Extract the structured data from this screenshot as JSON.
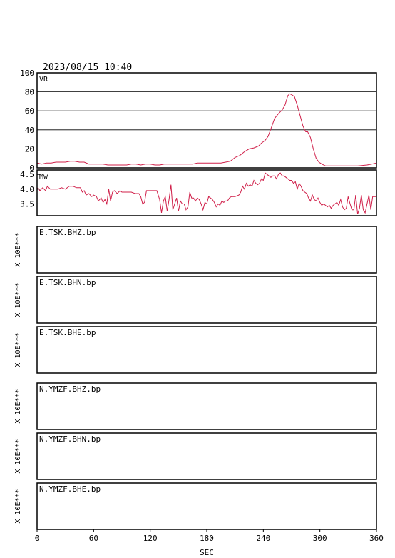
{
  "header": {
    "datetime": "2023/08/15  10:40"
  },
  "chart_data": [
    {
      "type": "line",
      "label": "VR",
      "ylim": [
        0,
        100
      ],
      "yticks": [
        0,
        20,
        40,
        60,
        80,
        100
      ],
      "grid": true,
      "color": "#d0204a",
      "points": [
        [
          0,
          5
        ],
        [
          5,
          4
        ],
        [
          10,
          5
        ],
        [
          15,
          5
        ],
        [
          20,
          6
        ],
        [
          25,
          6
        ],
        [
          30,
          6
        ],
        [
          35,
          7
        ],
        [
          40,
          7
        ],
        [
          45,
          6
        ],
        [
          50,
          6
        ],
        [
          55,
          4
        ],
        [
          60,
          4
        ],
        [
          65,
          4
        ],
        [
          70,
          4
        ],
        [
          75,
          3
        ],
        [
          80,
          3
        ],
        [
          85,
          3
        ],
        [
          90,
          3
        ],
        [
          95,
          3
        ],
        [
          100,
          4
        ],
        [
          105,
          4
        ],
        [
          110,
          3
        ],
        [
          115,
          4
        ],
        [
          120,
          4
        ],
        [
          125,
          3
        ],
        [
          130,
          3
        ],
        [
          135,
          4
        ],
        [
          140,
          4
        ],
        [
          145,
          4
        ],
        [
          150,
          4
        ],
        [
          155,
          4
        ],
        [
          160,
          4
        ],
        [
          165,
          4
        ],
        [
          170,
          5
        ],
        [
          175,
          5
        ],
        [
          180,
          5
        ],
        [
          185,
          5
        ],
        [
          190,
          5
        ],
        [
          195,
          5
        ],
        [
          200,
          6
        ],
        [
          205,
          7
        ],
        [
          210,
          11
        ],
        [
          215,
          13
        ],
        [
          220,
          17
        ],
        [
          225,
          20
        ],
        [
          230,
          21
        ],
        [
          235,
          23
        ],
        [
          238,
          26
        ],
        [
          242,
          29
        ],
        [
          245,
          33
        ],
        [
          248,
          41
        ],
        [
          252,
          52
        ],
        [
          256,
          57
        ],
        [
          260,
          61
        ],
        [
          263,
          66
        ],
        [
          266,
          76
        ],
        [
          268,
          78
        ],
        [
          270,
          77
        ],
        [
          273,
          75
        ],
        [
          276,
          66
        ],
        [
          279,
          55
        ],
        [
          282,
          44
        ],
        [
          285,
          38
        ],
        [
          287,
          38
        ],
        [
          290,
          32
        ],
        [
          293,
          20
        ],
        [
          296,
          10
        ],
        [
          299,
          6
        ],
        [
          302,
          4
        ],
        [
          306,
          2
        ],
        [
          312,
          2
        ],
        [
          320,
          2
        ],
        [
          330,
          2
        ],
        [
          340,
          2
        ],
        [
          350,
          3
        ],
        [
          355,
          4
        ],
        [
          360,
          5
        ]
      ]
    },
    {
      "type": "line",
      "label": "Mw",
      "ylim": [
        3.1,
        4.65
      ],
      "yticks": [
        3.5,
        4.0,
        4.5
      ],
      "color": "#d0204a",
      "points": [
        [
          0,
          4.05
        ],
        [
          3,
          3.95
        ],
        [
          6,
          4.05
        ],
        [
          9,
          3.95
        ],
        [
          11,
          4.1
        ],
        [
          14,
          4.0
        ],
        [
          18,
          4.0
        ],
        [
          22,
          4.0
        ],
        [
          26,
          4.05
        ],
        [
          30,
          4.0
        ],
        [
          34,
          4.1
        ],
        [
          38,
          4.1
        ],
        [
          42,
          4.05
        ],
        [
          46,
          4.05
        ],
        [
          48,
          3.9
        ],
        [
          50,
          3.95
        ],
        [
          52,
          3.8
        ],
        [
          55,
          3.85
        ],
        [
          58,
          3.75
        ],
        [
          60,
          3.8
        ],
        [
          63,
          3.75
        ],
        [
          65,
          3.6
        ],
        [
          68,
          3.7
        ],
        [
          70,
          3.55
        ],
        [
          72,
          3.65
        ],
        [
          74,
          3.5
        ],
        [
          76,
          4.0
        ],
        [
          78,
          3.6
        ],
        [
          80,
          3.9
        ],
        [
          82,
          3.95
        ],
        [
          85,
          3.85
        ],
        [
          88,
          3.95
        ],
        [
          90,
          3.9
        ],
        [
          93,
          3.9
        ],
        [
          96,
          3.9
        ],
        [
          100,
          3.9
        ],
        [
          104,
          3.85
        ],
        [
          108,
          3.85
        ],
        [
          110,
          3.75
        ],
        [
          112,
          3.5
        ],
        [
          114,
          3.55
        ],
        [
          116,
          3.95
        ],
        [
          120,
          3.95
        ],
        [
          124,
          3.95
        ],
        [
          127,
          3.95
        ],
        [
          130,
          3.65
        ],
        [
          132,
          3.2
        ],
        [
          134,
          3.6
        ],
        [
          136,
          3.75
        ],
        [
          138,
          3.25
        ],
        [
          140,
          3.65
        ],
        [
          142,
          4.15
        ],
        [
          144,
          3.3
        ],
        [
          146,
          3.5
        ],
        [
          148,
          3.7
        ],
        [
          150,
          3.25
        ],
        [
          152,
          3.6
        ],
        [
          154,
          3.5
        ],
        [
          156,
          3.5
        ],
        [
          158,
          3.3
        ],
        [
          160,
          3.4
        ],
        [
          162,
          3.9
        ],
        [
          164,
          3.7
        ],
        [
          166,
          3.7
        ],
        [
          168,
          3.6
        ],
        [
          170,
          3.7
        ],
        [
          172,
          3.65
        ],
        [
          174,
          3.5
        ],
        [
          176,
          3.3
        ],
        [
          178,
          3.55
        ],
        [
          180,
          3.5
        ],
        [
          182,
          3.75
        ],
        [
          184,
          3.7
        ],
        [
          186,
          3.65
        ],
        [
          188,
          3.55
        ],
        [
          190,
          3.4
        ],
        [
          192,
          3.5
        ],
        [
          194,
          3.45
        ],
        [
          196,
          3.6
        ],
        [
          198,
          3.55
        ],
        [
          200,
          3.6
        ],
        [
          202,
          3.6
        ],
        [
          204,
          3.7
        ],
        [
          206,
          3.75
        ],
        [
          210,
          3.75
        ],
        [
          214,
          3.8
        ],
        [
          216,
          3.9
        ],
        [
          218,
          4.1
        ],
        [
          220,
          4.0
        ],
        [
          222,
          4.2
        ],
        [
          224,
          4.1
        ],
        [
          226,
          4.15
        ],
        [
          228,
          4.1
        ],
        [
          230,
          4.3
        ],
        [
          232,
          4.2
        ],
        [
          234,
          4.15
        ],
        [
          236,
          4.2
        ],
        [
          238,
          4.35
        ],
        [
          240,
          4.3
        ],
        [
          242,
          4.55
        ],
        [
          244,
          4.5
        ],
        [
          246,
          4.45
        ],
        [
          248,
          4.4
        ],
        [
          250,
          4.45
        ],
        [
          252,
          4.45
        ],
        [
          254,
          4.35
        ],
        [
          256,
          4.5
        ],
        [
          258,
          4.55
        ],
        [
          260,
          4.45
        ],
        [
          262,
          4.45
        ],
        [
          264,
          4.4
        ],
        [
          266,
          4.35
        ],
        [
          268,
          4.3
        ],
        [
          270,
          4.3
        ],
        [
          272,
          4.2
        ],
        [
          274,
          4.25
        ],
        [
          276,
          4.0
        ],
        [
          278,
          4.2
        ],
        [
          280,
          4.1
        ],
        [
          282,
          3.95
        ],
        [
          284,
          3.9
        ],
        [
          286,
          3.85
        ],
        [
          288,
          3.7
        ],
        [
          290,
          3.6
        ],
        [
          292,
          3.8
        ],
        [
          294,
          3.65
        ],
        [
          296,
          3.6
        ],
        [
          298,
          3.7
        ],
        [
          300,
          3.55
        ],
        [
          302,
          3.45
        ],
        [
          304,
          3.5
        ],
        [
          306,
          3.45
        ],
        [
          308,
          3.4
        ],
        [
          310,
          3.45
        ],
        [
          312,
          3.35
        ],
        [
          314,
          3.45
        ],
        [
          316,
          3.5
        ],
        [
          318,
          3.55
        ],
        [
          320,
          3.45
        ],
        [
          322,
          3.65
        ],
        [
          324,
          3.4
        ],
        [
          326,
          3.3
        ],
        [
          328,
          3.35
        ],
        [
          330,
          3.75
        ],
        [
          332,
          3.5
        ],
        [
          334,
          3.3
        ],
        [
          336,
          3.3
        ],
        [
          338,
          3.8
        ],
        [
          340,
          3.15
        ],
        [
          342,
          3.35
        ],
        [
          344,
          3.8
        ],
        [
          346,
          3.3
        ],
        [
          348,
          3.2
        ],
        [
          350,
          3.5
        ],
        [
          352,
          3.8
        ],
        [
          354,
          3.3
        ],
        [
          356,
          3.75
        ],
        [
          358,
          3.75
        ],
        [
          360,
          3.75
        ]
      ]
    }
  ],
  "traces": [
    {
      "name": "E.TSK.BHZ.bp",
      "scale": "X 10E***"
    },
    {
      "name": "E.TSK.BHN.bp",
      "scale": "X 10E***"
    },
    {
      "name": "E.TSK.BHE.bp",
      "scale": "X 10E***"
    },
    {
      "name": "N.YMZF.BHZ.bp",
      "scale": "X 10E***"
    },
    {
      "name": "N.YMZF.BHN.bp",
      "scale": "X 10E***"
    },
    {
      "name": "N.YMZF.BHE.bp",
      "scale": "X 10E***"
    }
  ],
  "xaxis": {
    "label": "SEC",
    "min": 0,
    "max": 360,
    "ticks": [
      0,
      60,
      120,
      180,
      240,
      300,
      360
    ]
  }
}
